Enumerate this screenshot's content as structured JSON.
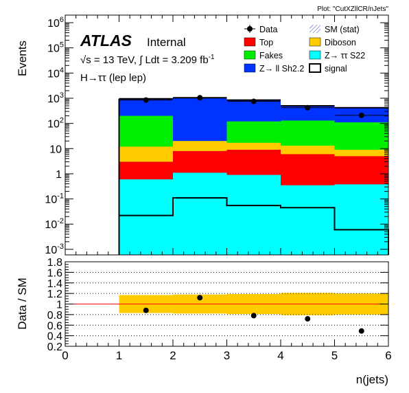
{
  "plot_tag": "Plot: \"CutXZllCR/nJets\"",
  "atlas_label": "ATLAS",
  "internal_label": "Internal",
  "lumi_text": {
    "sqrt": "√",
    "s_part": "s = 13 TeV, ",
    "integral": "∫",
    "ldt_part": " Ldt = 3.209 fb",
    "exponent": "-1"
  },
  "channel_label": "H→ττ (lep lep)",
  "colors": {
    "Top": "#ff0000",
    "Fakes": "#00ee00",
    "Zll": "#0033ff",
    "Diboson": "#ffcc00",
    "Ztt": "#00ffff",
    "band": "#ffcc00",
    "ratio_line": "#ff0000"
  },
  "chart_data": [
    {
      "type": "bar",
      "subtype": "stacked-histogram",
      "xlabel": "",
      "ylabel": "Events",
      "x_edges": [
        0,
        1,
        2,
        3,
        4,
        5,
        6
      ],
      "ylog": true,
      "ylim": [
        0.0006,
        2000000
      ],
      "y_tick_labels": [
        {
          "value": 0.001,
          "mant": "10",
          "exp": "-3"
        },
        {
          "value": 0.01,
          "mant": "10",
          "exp": "-2"
        },
        {
          "value": 0.1,
          "mant": "10",
          "exp": "-1"
        },
        {
          "value": 1,
          "mant": "1",
          "exp": ""
        },
        {
          "value": 10,
          "mant": "10",
          "exp": ""
        },
        {
          "value": 100,
          "mant": "10",
          "exp": "2"
        },
        {
          "value": 1000,
          "mant": "10",
          "exp": "3"
        },
        {
          "value": 10000,
          "mant": "10",
          "exp": "4"
        },
        {
          "value": 100000,
          "mant": "10",
          "exp": "5"
        },
        {
          "value": 1000000,
          "mant": "10",
          "exp": "6"
        }
      ],
      "categories": [
        "1",
        "2",
        "3",
        "4",
        "5"
      ],
      "series": [
        {
          "key": "Ztt",
          "legend": "Z→ ττ S22",
          "stack_top": [
            0.6,
            1.1,
            0.9,
            0.35,
            0.38
          ]
        },
        {
          "key": "Top",
          "legend": "Top",
          "stack_top": [
            3.0,
            8.0,
            9.0,
            6.0,
            5.0
          ]
        },
        {
          "key": "Diboson",
          "legend": "Diboson",
          "stack_top": [
            12,
            20,
            17,
            13,
            9
          ]
        },
        {
          "key": "Fakes",
          "legend": "Fakes",
          "stack_top": [
            200,
            20,
            120,
            130,
            110
          ]
        },
        {
          "key": "Zll",
          "legend": "Z→ ll Sh2.2",
          "stack_top": [
            950,
            1050,
            850,
            500,
            420
          ]
        }
      ],
      "sm_stat_error": [
        30,
        30,
        30,
        20,
        20
      ],
      "signal": {
        "legend": "signal",
        "values": [
          0.022,
          0.11,
          0.055,
          0.045,
          0.006
        ]
      },
      "data": {
        "legend": "Data",
        "x": [
          1.5,
          2.5,
          3.5,
          4.5,
          5.5
        ],
        "y": [
          850,
          1050,
          750,
          420,
          210
        ]
      },
      "sm_stat_legend": "SM (stat)",
      "legend_position": "top-right"
    },
    {
      "type": "scatter",
      "xlabel": "n(jets)",
      "ylabel": "Data / SM",
      "xlim": [
        0,
        6
      ],
      "ylim": [
        0.2,
        1.8
      ],
      "x_ticks": [
        0,
        1,
        2,
        3,
        4,
        5,
        6
      ],
      "y_ticks": [
        0.2,
        0.4,
        0.6,
        0.8,
        1,
        1.2,
        1.4,
        1.6,
        1.8
      ],
      "y_tick_labels": [
        "0.2",
        "0.4",
        "0.6",
        "0.8",
        "1",
        "1.2",
        "1.4",
        "1.6",
        "1.8"
      ],
      "reference_line": 1,
      "band": [
        {
          "x0": 1,
          "x1": 2,
          "lo": 0.83,
          "hi": 1.17
        },
        {
          "x0": 2,
          "x1": 3,
          "lo": 0.82,
          "hi": 1.18
        },
        {
          "x0": 3,
          "x1": 4,
          "lo": 0.81,
          "hi": 1.19
        },
        {
          "x0": 4,
          "x1": 5,
          "lo": 0.79,
          "hi": 1.21
        },
        {
          "x0": 5,
          "x1": 6,
          "lo": 0.8,
          "hi": 1.2
        }
      ],
      "points": {
        "x": [
          1.5,
          2.5,
          3.5,
          4.5,
          5.5
        ],
        "y": [
          0.88,
          1.12,
          0.78,
          0.72,
          0.49
        ]
      }
    }
  ]
}
